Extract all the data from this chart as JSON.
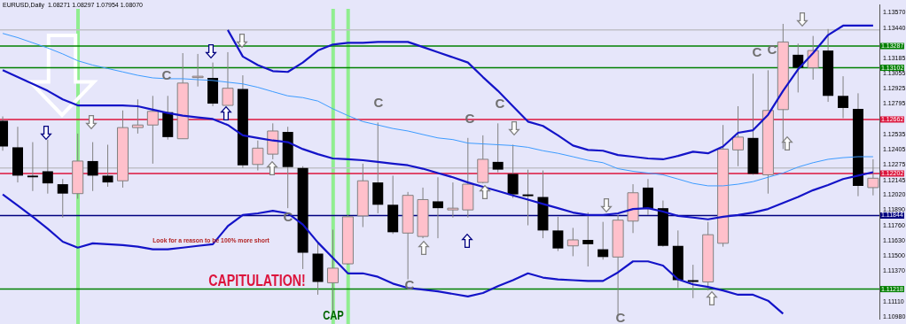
{
  "chart_data": {
    "type": "candlestick",
    "title": "EURUSD,Daily  1.08271 1.08297 1.07954 1.08070",
    "categories": [
      null,
      null,
      null,
      null,
      null,
      null,
      null,
      null,
      null,
      null,
      null,
      null,
      null,
      null,
      null,
      null,
      null,
      null,
      null,
      null,
      null,
      null,
      null,
      null,
      null,
      null,
      null,
      null,
      null,
      null,
      null,
      null,
      null,
      null,
      null,
      null,
      null,
      null,
      null,
      null,
      null,
      null,
      null,
      null,
      null,
      null,
      null,
      null,
      null,
      null,
      null,
      null,
      null,
      null,
      null,
      null,
      null,
      null,
      null
    ],
    "ohlc": [
      [
        1.12651,
        1.12688,
        1.12396,
        1.12432
      ],
      [
        1.12425,
        1.126,
        1.12126,
        1.12184
      ],
      [
        1.12184,
        1.12469,
        1.12053,
        1.1217
      ],
      [
        1.12221,
        1.12491,
        1.12031,
        1.12118
      ],
      [
        1.12111,
        1.12155,
        1.11827,
        1.12031
      ],
      [
        1.12031,
        1.12542,
        1.11987,
        1.12308
      ],
      [
        1.12308,
        1.12469,
        1.12053,
        1.12184
      ],
      [
        1.12184,
        1.12447,
        1.12089,
        1.12126
      ],
      [
        1.1214,
        1.12739,
        1.12082,
        1.12593
      ],
      [
        1.12593,
        1.12833,
        1.12542,
        1.12615
      ],
      [
        1.12615,
        1.12863,
        1.12286,
        1.12731
      ],
      [
        1.12724,
        1.12863,
        1.12491,
        1.12512
      ],
      [
        1.12498,
        1.13227,
        1.12498,
        1.12972
      ],
      [
        1.13023,
        1.1322,
        1.12943,
        1.1303
      ],
      [
        1.13016,
        1.13147,
        1.12775,
        1.12797
      ],
      [
        1.12782,
        1.13235,
        1.12782,
        1.12928
      ],
      [
        1.12921,
        1.13038,
        1.1225,
        1.12272
      ],
      [
        1.12279,
        1.12483,
        1.12228,
        1.12418
      ],
      [
        1.12367,
        1.12629,
        1.12323,
        1.12564
      ],
      [
        1.12556,
        1.126,
        1.11907,
        1.12257
      ],
      [
        1.1225,
        1.12264,
        1.11389,
        1.11528
      ],
      [
        1.1152,
        1.11615,
        1.1117,
        1.11279
      ],
      [
        1.11272,
        1.11724,
        1.11009,
        1.11396
      ],
      [
        1.11433,
        1.11848,
        1.11425,
        1.11834
      ],
      [
        1.11841,
        1.12286,
        1.11746,
        1.1214
      ],
      [
        1.12126,
        1.12636,
        1.11863,
        1.11936
      ],
      [
        1.11936,
        1.12184,
        1.11688,
        1.11702
      ],
      [
        1.11695,
        1.12045,
        1.11301,
        1.12016
      ],
      [
        1.11666,
        1.12082,
        1.11651,
        1.1198
      ],
      [
        1.11965,
        1.1217,
        1.11651,
        1.11907
      ],
      [
        1.11892,
        1.12126,
        1.11827,
        1.11907
      ],
      [
        1.11892,
        1.12505,
        1.11827,
        1.12111
      ],
      [
        1.12126,
        1.12527,
        1.12118,
        1.12323
      ],
      [
        1.12301,
        1.12629,
        1.12213,
        1.12235
      ],
      [
        1.12199,
        1.12447,
        1.11994,
        1.12024
      ],
      [
        1.12024,
        1.12235,
        1.11761,
        1.12009
      ],
      [
        1.12002,
        1.12228,
        1.11651,
        1.11717
      ],
      [
        1.11717,
        1.11834,
        1.11542,
        1.11564
      ],
      [
        1.11586,
        1.11739,
        1.11498,
        1.11637
      ],
      [
        1.11637,
        1.1187,
        1.11411,
        1.116
      ],
      [
        1.11557,
        1.1179,
        1.11469,
        1.11491
      ],
      [
        1.11491,
        1.11848,
        1.10995,
        1.11805
      ],
      [
        1.11797,
        1.12111,
        1.11695,
        1.12038
      ],
      [
        1.12082,
        1.12155,
        1.11848,
        1.119
      ],
      [
        1.11907,
        1.11972,
        1.11579,
        1.11586
      ],
      [
        1.11586,
        1.11717,
        1.11228,
        1.11294
      ],
      [
        1.11294,
        1.11425,
        1.11141,
        1.11279
      ],
      [
        1.11279,
        1.1179,
        1.11206,
        1.11681
      ],
      [
        1.11608,
        1.12615,
        1.11579,
        1.1241
      ],
      [
        1.12403,
        1.12775,
        1.12264,
        1.12512
      ],
      [
        1.12505,
        1.13052,
        1.12191,
        1.12199
      ],
      [
        1.12191,
        1.13081,
        1.12031,
        1.12739
      ],
      [
        1.12746,
        1.13476,
        1.1241,
        1.13322
      ],
      [
        1.13213,
        1.13308,
        1.12892,
        1.13103
      ],
      [
        1.13103,
        1.13373,
        1.13001,
        1.13249
      ],
      [
        1.13249,
        1.13432,
        1.12812,
        1.12863
      ],
      [
        1.12863,
        1.1303,
        1.12673,
        1.1276
      ],
      [
        1.12753,
        1.12885,
        1.12009,
        1.12097
      ],
      [
        1.12082,
        1.12323,
        1.12016,
        1.12162
      ]
    ],
    "series": [
      {
        "type": "line",
        "color": "#1414c8",
        "values": [
          null,
          null,
          null,
          null,
          null,
          null,
          null,
          null,
          null,
          null,
          null,
          null,
          null,
          null,
          null,
          1.13424,
          1.13198,
          1.13125,
          1.13074,
          1.13067,
          1.13147,
          1.13249,
          1.133,
          1.13315,
          1.13315,
          1.13322,
          1.13322,
          1.13322,
          1.13279,
          1.13235,
          1.13191,
          1.13147,
          1.13023,
          1.12906,
          1.12775,
          1.12644,
          1.12607,
          1.12527,
          1.1244,
          1.12403,
          1.12396,
          1.12359,
          1.12345,
          1.1233,
          1.12323,
          1.12352,
          1.12388,
          1.12374,
          1.12432,
          1.12549,
          1.12571,
          1.12702,
          1.12906,
          1.13089,
          1.13227,
          1.13381,
          1.13461,
          1.13461,
          1.13461
        ]
      },
      {
        "type": "line",
        "color": "#1414c8",
        "values": [
          1.13081,
          1.13023,
          1.12965,
          1.12906,
          1.12833,
          1.12782,
          1.12782,
          1.12782,
          1.12782,
          1.12775,
          1.12746,
          1.12717,
          1.12695,
          1.1268,
          1.12666,
          1.12615,
          1.12527,
          1.12505,
          1.12483,
          1.12469,
          1.1241,
          1.12367,
          1.1233,
          1.12323,
          1.12315,
          1.12301,
          1.12286,
          1.12272,
          1.12243,
          1.12206,
          1.1217,
          1.12126,
          1.12089,
          1.12053,
          1.12016,
          1.1198,
          1.11943,
          1.11907,
          1.1187,
          1.11849,
          1.11849,
          1.11863,
          1.119,
          1.11907,
          1.11878,
          1.11841,
          1.11827,
          1.11812,
          1.11834,
          1.11849,
          1.1187,
          1.119,
          1.11951,
          1.12002,
          1.1206,
          1.12104,
          1.12155,
          1.12184,
          1.12213
        ]
      },
      {
        "type": "line",
        "color": "#1414c8",
        "values": [
          1.12024,
          1.11929,
          1.11834,
          1.11732,
          1.11622,
          1.11571,
          1.11608,
          1.116,
          1.11593,
          1.11579,
          1.11557,
          1.11557,
          1.11571,
          1.11586,
          1.116,
          1.11754,
          1.11849,
          1.11863,
          1.11885,
          1.11863,
          1.11768,
          1.11615,
          1.11484,
          1.11352,
          1.11352,
          1.11323,
          1.11265,
          1.11228,
          1.11214,
          1.11199,
          1.11177,
          1.11155,
          1.11185,
          1.11243,
          1.11294,
          1.11352,
          1.11316,
          1.11301,
          1.11294,
          1.11287,
          1.11287,
          1.1136,
          1.11454,
          1.11454,
          1.11418,
          1.11301,
          1.11258,
          1.11236,
          1.11206,
          1.1117,
          1.1117,
          1.11119,
          1.11009,
          null,
          null,
          null,
          null,
          null,
          null
        ]
      },
      {
        "type": "line",
        "color": "#3c9bff",
        "values": [
          1.13395,
          1.13359,
          1.13315,
          1.13271,
          1.1322,
          1.13162,
          1.13125,
          1.13096,
          1.13067,
          1.13038,
          1.13016,
          1.13009,
          1.13009,
          1.13001,
          1.12994,
          1.12979,
          1.12965,
          1.12936,
          1.12899,
          1.12863,
          1.12848,
          1.12819,
          1.12753,
          1.12695,
          1.12644,
          1.12615,
          1.12585,
          1.12564,
          1.12534,
          1.12505,
          1.12491,
          1.12461,
          1.12454,
          1.12447,
          1.1244,
          1.12425,
          1.12396,
          1.12374,
          1.12345,
          1.12315,
          1.12294,
          1.12243,
          1.12221,
          1.12206,
          1.12191,
          1.12155,
          1.12118,
          1.12097,
          1.12097,
          1.12111,
          1.12133,
          1.1217,
          1.12206,
          1.12257,
          1.12294,
          1.12323,
          1.12337,
          1.12345,
          1.12345
        ]
      }
    ],
    "ylim": [
      1.1096,
      1.1364
    ],
    "yticks": [
      {
        "value": 1.1357,
        "label": "1.13570"
      },
      {
        "value": 1.1344,
        "label": "1.13440"
      },
      {
        "value": 1.13185,
        "label": "1.13185"
      },
      {
        "value": 1.13055,
        "label": "1.13055"
      },
      {
        "value": 1.12925,
        "label": "1.12925"
      },
      {
        "value": 1.12795,
        "label": "1.12795"
      },
      {
        "value": 1.12535,
        "label": "1.12535"
      },
      {
        "value": 1.12405,
        "label": "1.12405"
      },
      {
        "value": 1.12275,
        "label": "1.12275"
      },
      {
        "value": 1.12145,
        "label": "1.12145"
      },
      {
        "value": 1.1202,
        "label": "1.12020"
      },
      {
        "value": 1.1189,
        "label": "1.11890"
      },
      {
        "value": 1.1176,
        "label": "1.11760"
      },
      {
        "value": 1.1163,
        "label": "1.11630"
      },
      {
        "value": 1.115,
        "label": "1.11500"
      },
      {
        "value": 1.1137,
        "label": "1.11370"
      },
      {
        "value": 1.1111,
        "label": "1.11110"
      },
      {
        "value": 1.1098,
        "label": "1.10980"
      }
    ],
    "ref_lines": [
      {
        "axis": "y",
        "value": 1.13424,
        "label": null,
        "color": "#c0c0c8"
      },
      {
        "axis": "y",
        "value": 1.1225,
        "label": null,
        "color": "#c0c0c8"
      },
      {
        "axis": "y",
        "value": 1.13287,
        "label": "1.13287",
        "color": "#008000"
      },
      {
        "axis": "y",
        "value": 1.13102,
        "label": "1.13102",
        "color": "#008000"
      },
      {
        "axis": "y",
        "value": 1.12662,
        "label": "1.12662",
        "color": "#dc143c"
      },
      {
        "axis": "y",
        "value": 1.12202,
        "label": "1.12202",
        "color": "#dc143c"
      },
      {
        "axis": "y",
        "value": 1.11844,
        "label": "1.11844",
        "color": "#000080"
      },
      {
        "axis": "y",
        "value": 1.11218,
        "label": "1.11218",
        "color": "#008000"
      }
    ],
    "annotations": [
      "Look for a reason to be 100% more short",
      "CAPITULATION!",
      "CAP",
      "C",
      "C",
      "C",
      "C",
      "C",
      "C",
      "C",
      "C",
      "C"
    ],
    "grid": "x",
    "legend": false
  }
}
